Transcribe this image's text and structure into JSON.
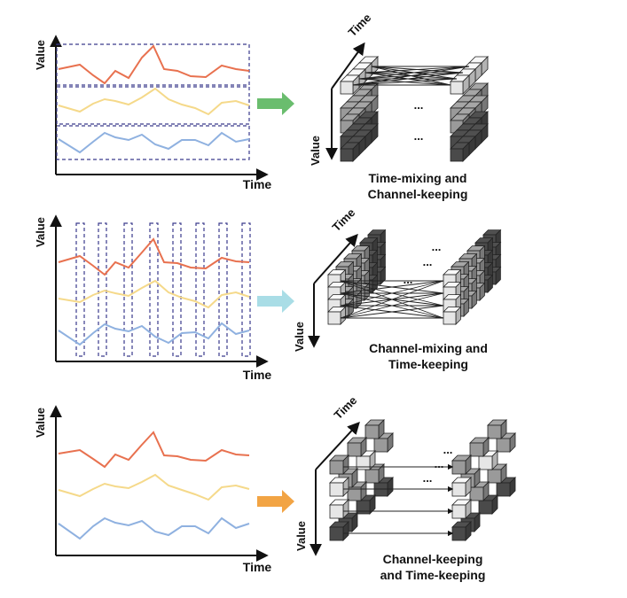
{
  "rows": [
    {
      "chart": {
        "y_label": "Value",
        "x_label": "Time",
        "series_colors": [
          "#e8714f",
          "#f5d98a",
          "#8fb1e0"
        ],
        "dashed_boxes": "horizontal-bands"
      },
      "arrow_color": "#6abd6e",
      "cube": {
        "time_label": "Time",
        "value_label": "Value",
        "dots_top": "...",
        "dots_mid": "...",
        "mode": "time-mixing"
      },
      "caption_line1": "Time-mixing and",
      "caption_line2": "Channel-keeping"
    },
    {
      "chart": {
        "y_label": "Value",
        "x_label": "Time",
        "series_colors": [
          "#e8714f",
          "#f5d98a",
          "#8fb1e0"
        ],
        "dashed_boxes": "vertical-columns"
      },
      "arrow_color": "#a9dde6",
      "cube": {
        "time_label": "Time",
        "value_label": "Value",
        "dots_top": "...",
        "dots_mid": "...",
        "dots_cross": "...",
        "mode": "channel-mixing"
      },
      "caption_line1": "Channel-mixing and",
      "caption_line2": "Time-keeping"
    },
    {
      "chart": {
        "y_label": "Value",
        "x_label": "Time",
        "series_colors": [
          "#e8714f",
          "#f5d98a",
          "#8fb1e0"
        ],
        "dashed_boxes": "none"
      },
      "arrow_color": "#f2a444",
      "cube": {
        "time_label": "Time",
        "value_label": "Value",
        "dots_top": "...",
        "dots_mid": "...",
        "dots_low": "...",
        "mode": "keeping"
      },
      "caption_line1": "Channel-keeping",
      "caption_line2": "and Time-keeping"
    }
  ],
  "colors": {
    "cube_light": "#e6e6e6",
    "cube_mid": "#9a9a9a",
    "cube_dark": "#4a4a4a"
  }
}
